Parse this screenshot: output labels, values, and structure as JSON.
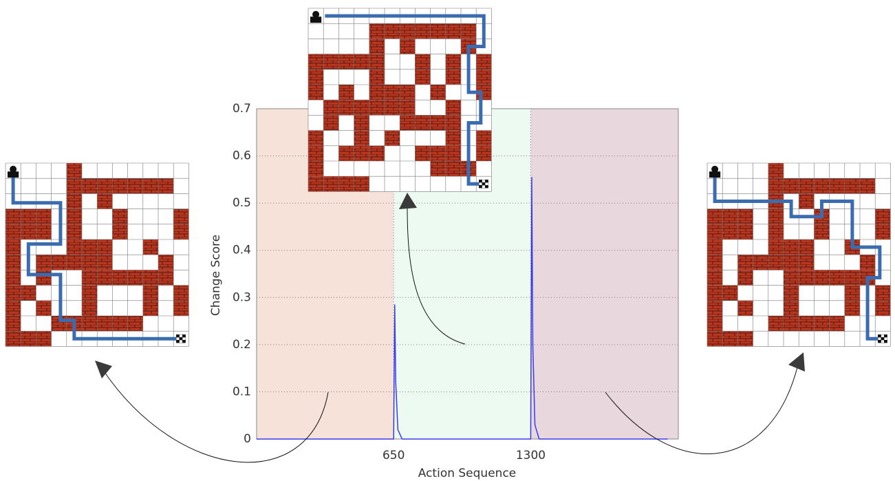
{
  "chart_data": {
    "type": "line",
    "x_label": "Action Sequence",
    "y_label": "Change Score",
    "x": [
      0,
      640,
      650,
      655,
      660,
      670,
      690,
      1290,
      1300,
      1305,
      1310,
      1320,
      1340,
      1950
    ],
    "values": [
      0,
      0,
      0,
      0.285,
      0.12,
      0.02,
      0,
      0,
      0,
      0.555,
      0.2,
      0.03,
      0,
      0
    ],
    "color": "#3a3aee",
    "xlim": [
      0,
      2000
    ],
    "xticks": [
      650,
      1300
    ],
    "ylim": [
      0,
      0.7
    ],
    "yticks": [
      0,
      0.1,
      0.2,
      0.3,
      0.4,
      0.5,
      0.6,
      0.7
    ],
    "grid": true,
    "region_colors": [
      "#f7e2d9",
      "#ecfaf2",
      "#e8d8de"
    ]
  }
}
